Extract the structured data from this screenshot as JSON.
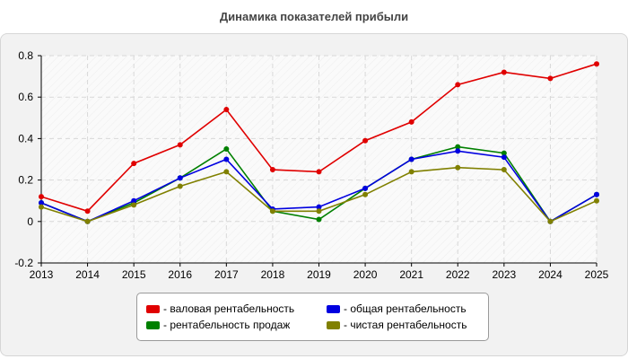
{
  "title": "Динамика показателей прибыли",
  "chart_data": {
    "type": "line",
    "title": "Динамика показателей прибыли",
    "xlabel": "",
    "ylabel": "",
    "x": [
      "2013",
      "2014",
      "2015",
      "2016",
      "2017",
      "2018",
      "2019",
      "2020",
      "2021",
      "2022",
      "2023",
      "2024",
      "2025"
    ],
    "ylim": [
      -0.2,
      0.8
    ],
    "yticks": [
      "-0.2",
      "0",
      "0.2",
      "0.4",
      "0.6",
      "0.8"
    ],
    "grid": true,
    "legend_position": "bottom",
    "series": [
      {
        "name": "- валовая рентабельность",
        "color": "#e00000",
        "values": [
          0.12,
          0.05,
          0.28,
          0.37,
          0.54,
          0.25,
          0.24,
          0.39,
          0.48,
          0.66,
          0.72,
          0.69,
          0.76
        ]
      },
      {
        "name": "- рентабельность продаж",
        "color": "#008000",
        "values": [
          0.09,
          0.0,
          0.09,
          0.21,
          0.35,
          0.05,
          0.01,
          0.16,
          0.3,
          0.36,
          0.33,
          0.0,
          0.13
        ]
      },
      {
        "name": "- общая рентабельность",
        "color": "#0000e0",
        "values": [
          0.09,
          0.0,
          0.1,
          0.21,
          0.3,
          0.06,
          0.07,
          0.16,
          0.3,
          0.34,
          0.31,
          0.0,
          0.13
        ]
      },
      {
        "name": "- чистая рентабельность",
        "color": "#808000",
        "values": [
          0.07,
          0.0,
          0.08,
          0.17,
          0.24,
          0.05,
          0.05,
          0.13,
          0.24,
          0.26,
          0.25,
          0.0,
          0.1
        ]
      }
    ]
  },
  "legend": {
    "items": [
      {
        "label": "- валовая рентабельность",
        "color": "#e00000"
      },
      {
        "label": "- общая рентабельность",
        "color": "#0000e0"
      },
      {
        "label": "- рентабельность продаж",
        "color": "#008000"
      },
      {
        "label": "- чистая рентабельность",
        "color": "#808000"
      }
    ]
  }
}
